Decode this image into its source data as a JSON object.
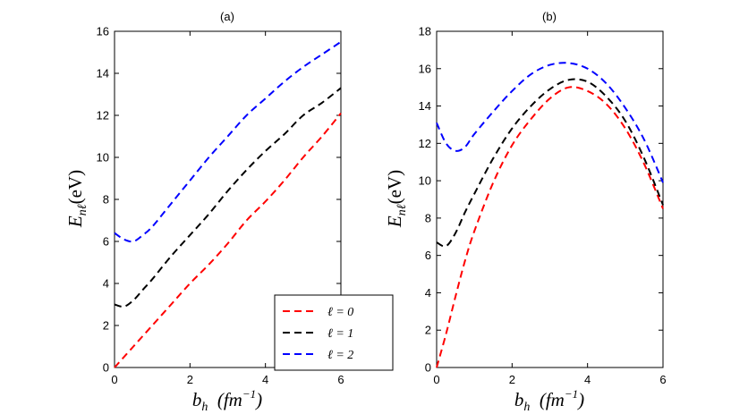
{
  "chart_data": [
    {
      "type": "line",
      "title": "(a)",
      "ylabel": {
        "main": "E",
        "sub": "nℓ",
        "rest": "(eV)"
      },
      "xlabel": {
        "main": "b",
        "sub": "h",
        "rest": "  (fm",
        "sup": "−1",
        "close": ")"
      },
      "xlim": [
        0,
        6
      ],
      "ylim": [
        0,
        16
      ],
      "xticks": [
        "0",
        "2",
        "4",
        "6"
      ],
      "yticks": [
        "0",
        "2",
        "4",
        "6",
        "8",
        "10",
        "12",
        "14",
        "16"
      ],
      "legend": {
        "location": "bottom-right",
        "entries": [
          "ℓ = 0",
          "ℓ = 1",
          "ℓ = 2"
        ]
      },
      "series": [
        {
          "name": "ℓ = 0",
          "color": "#ff0000",
          "x": [
            0,
            0.5,
            1,
            1.5,
            2,
            2.5,
            3,
            3.5,
            4,
            4.5,
            5,
            5.5,
            6
          ],
          "y": [
            0,
            1.0,
            2.0,
            3.0,
            4.0,
            4.9,
            5.9,
            7.0,
            7.9,
            8.9,
            10.0,
            11.0,
            12.1
          ]
        },
        {
          "name": "ℓ = 1",
          "color": "#000000",
          "x": [
            0,
            0.25,
            0.5,
            0.75,
            1,
            1.5,
            2,
            2.5,
            3,
            3.5,
            4,
            4.5,
            5,
            5.5,
            6
          ],
          "y": [
            3.0,
            2.9,
            3.2,
            3.7,
            4.2,
            5.3,
            6.3,
            7.3,
            8.4,
            9.4,
            10.3,
            11.1,
            12.0,
            12.6,
            13.3
          ]
        },
        {
          "name": "ℓ = 2",
          "color": "#0000ff",
          "x": [
            0,
            0.25,
            0.5,
            0.75,
            1,
            1.5,
            2,
            2.5,
            3,
            3.5,
            4,
            4.5,
            5,
            5.5,
            6
          ],
          "y": [
            6.4,
            6.1,
            6.0,
            6.3,
            6.7,
            7.8,
            8.9,
            10.0,
            11.0,
            12.0,
            12.8,
            13.6,
            14.3,
            14.9,
            15.5
          ]
        }
      ]
    },
    {
      "type": "line",
      "title": "(b)",
      "ylabel": {
        "main": "E",
        "sub": "nℓ",
        "rest": "(eV)"
      },
      "xlabel": {
        "main": "b",
        "sub": "h",
        "rest": "  (fm",
        "sup": "−1",
        "close": ")"
      },
      "xlim": [
        0,
        6
      ],
      "ylim": [
        0,
        18
      ],
      "xticks": [
        "0",
        "2",
        "4",
        "6"
      ],
      "yticks": [
        "0",
        "2",
        "4",
        "6",
        "8",
        "10",
        "12",
        "14",
        "16",
        "18"
      ],
      "series": [
        {
          "name": "ℓ = 0",
          "color": "#ff0000",
          "x": [
            0,
            0.25,
            0.5,
            0.75,
            1,
            1.5,
            2,
            2.5,
            3,
            3.5,
            4,
            4.5,
            5,
            5.5,
            6
          ],
          "y": [
            0,
            1.8,
            3.8,
            5.7,
            7.3,
            9.9,
            11.9,
            13.3,
            14.4,
            15.0,
            14.8,
            14.1,
            12.8,
            10.9,
            8.5
          ]
        },
        {
          "name": "ℓ = 1",
          "color": "#000000",
          "x": [
            0,
            0.25,
            0.5,
            0.75,
            1,
            1.5,
            2,
            2.5,
            3,
            3.5,
            4,
            4.5,
            5,
            5.5,
            6
          ],
          "y": [
            6.7,
            6.5,
            7.2,
            8.3,
            9.3,
            11.2,
            12.8,
            14.0,
            14.9,
            15.4,
            15.3,
            14.5,
            13.2,
            11.2,
            8.7
          ]
        },
        {
          "name": "ℓ = 2",
          "color": "#0000ff",
          "x": [
            0,
            0.25,
            0.5,
            0.75,
            1,
            1.5,
            2,
            2.5,
            3,
            3.5,
            4,
            4.5,
            5,
            5.5,
            6
          ],
          "y": [
            13.1,
            12.0,
            11.6,
            11.8,
            12.5,
            13.7,
            14.8,
            15.7,
            16.2,
            16.3,
            16.0,
            15.2,
            13.9,
            12.2,
            9.9
          ]
        }
      ]
    }
  ]
}
